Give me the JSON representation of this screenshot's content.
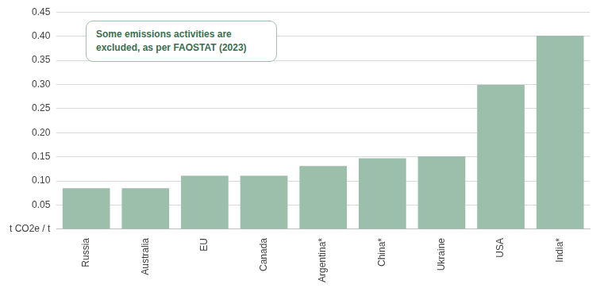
{
  "chart_data": {
    "type": "bar",
    "annotation": "Some emissions activities are excluded, as per FAOSTAT (2023)",
    "categories": [
      "Russia",
      "Australia",
      "EU",
      "Canada",
      "Argentina*",
      "China*",
      "Ukraine",
      "USA",
      "India*"
    ],
    "values": [
      0.085,
      0.085,
      0.111,
      0.111,
      0.131,
      0.147,
      0.151,
      0.299,
      0.401
    ],
    "color": "#9cbfab",
    "ylim": [
      0,
      0.45
    ],
    "yticks": [
      {
        "value": 0,
        "label": "t CO2e / t"
      },
      0.05,
      {
        "value": 0.1,
        "label": "0.10"
      },
      0.15,
      {
        "value": 0.2,
        "label": "0.20"
      },
      0.25,
      {
        "value": 0.3,
        "label": "0.30"
      },
      0.35,
      {
        "value": 0.4,
        "label": "0.40"
      },
      0.45
    ],
    "grid": true
  }
}
